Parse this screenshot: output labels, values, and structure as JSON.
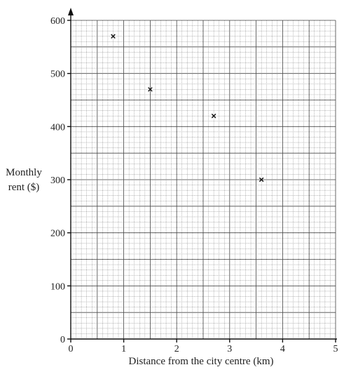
{
  "chart_data": {
    "type": "scatter",
    "title": "",
    "xlabel": "Distance from the city centre (km)",
    "ylabel_lines": [
      "Monthly",
      "rent ($)"
    ],
    "xlim": [
      0,
      5
    ],
    "ylim": [
      0,
      600
    ],
    "x_ticks": [
      0,
      1,
      2,
      3,
      4,
      5
    ],
    "y_ticks": [
      0,
      100,
      200,
      300,
      400,
      500,
      600
    ],
    "x_minor_step": 0.1,
    "y_minor_step": 10,
    "grid": true,
    "marker": "x",
    "points": [
      {
        "x": 0.8,
        "y": 570
      },
      {
        "x": 1.5,
        "y": 470
      },
      {
        "x": 2.7,
        "y": 420
      },
      {
        "x": 3.6,
        "y": 300
      }
    ]
  }
}
